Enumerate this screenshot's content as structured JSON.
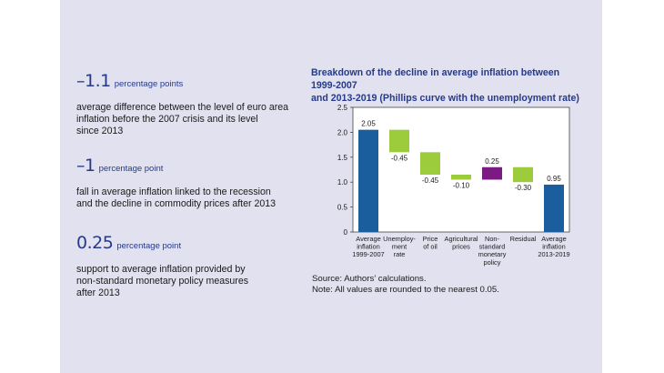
{
  "stats": [
    {
      "value": "–1.1",
      "unit": "percentage points",
      "text": [
        "average difference between the level of euro area",
        "inflation before the 2007 crisis and its level",
        "since 2013"
      ]
    },
    {
      "value": "–1",
      "unit": "percentage point",
      "text": [
        "fall in average inflation linked to the recession",
        "and the decline in commodity prices after 2013"
      ]
    },
    {
      "value": "0.25",
      "unit": "percentage point",
      "text": [
        "support to average inflation provided by",
        "non-standard monetary policy measures",
        "after 2013"
      ]
    }
  ],
  "chart_title": [
    "Breakdown of the decline in average inflation between 1999-2007",
    "and 2013-2019 (Phillips curve with the unemployment rate)"
  ],
  "notes": [
    "Source: Authors’ calculations.",
    "Note: All values are rounded to the nearest 0.05."
  ],
  "colors": {
    "total": "#1a5e9e",
    "negative": "#9ccb3b",
    "positive": "#7a1a82",
    "title": "#253a8a",
    "panel": "#e1e1f0"
  },
  "chart_data": {
    "type": "waterfall",
    "ylim": [
      0,
      2.5
    ],
    "yticks": [
      "0",
      "0.5",
      "1.0",
      "1.5",
      "2.0",
      "2.5"
    ],
    "categories": [
      [
        "Average",
        "inflation",
        "1999-2007"
      ],
      [
        "Unemploy-",
        "ment",
        "rate"
      ],
      [
        "Price",
        "of oil"
      ],
      [
        "Agricultural",
        "prices"
      ],
      [
        "Non-",
        "standard",
        "monetary",
        "policy"
      ],
      [
        "Residual"
      ],
      [
        "Average",
        "inflation",
        "2013-2019"
      ]
    ],
    "bars": [
      {
        "kind": "total",
        "start": 0,
        "end": 2.05,
        "label": "2.05"
      },
      {
        "kind": "negative",
        "start": 2.05,
        "end": 1.6,
        "label": "-0.45"
      },
      {
        "kind": "negative",
        "start": 1.6,
        "end": 1.15,
        "label": "-0.45"
      },
      {
        "kind": "negative",
        "start": 1.15,
        "end": 1.05,
        "label": "-0.10"
      },
      {
        "kind": "positive",
        "start": 1.05,
        "end": 1.3,
        "label": "0.25"
      },
      {
        "kind": "negative",
        "start": 1.3,
        "end": 1.0,
        "label": "-0.30"
      },
      {
        "kind": "total",
        "start": 0,
        "end": 0.95,
        "label": "0.95"
      }
    ],
    "grid": false
  }
}
